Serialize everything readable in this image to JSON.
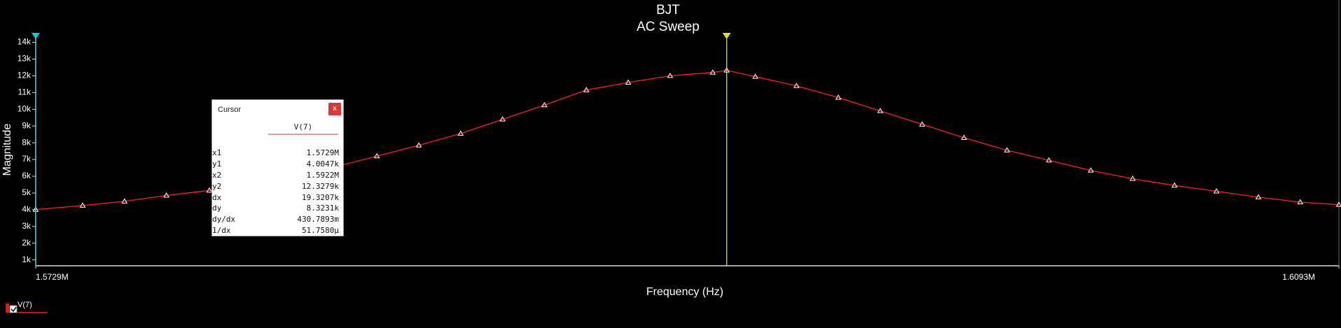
{
  "chart_data": {
    "type": "line",
    "title": "BJT",
    "subtitle": "AC Sweep",
    "x_label": "Frequency (Hz)",
    "y_label": "Magnitude",
    "x": [
      1572900,
      1574210,
      1575380,
      1576550,
      1577750,
      1578920,
      1580090,
      1581260,
      1582430,
      1583600,
      1584770,
      1585940,
      1587110,
      1588280,
      1589450,
      1590620,
      1591810,
      1592200,
      1593000,
      1594150,
      1595320,
      1596490,
      1597660,
      1598830,
      1600030,
      1601200,
      1602370,
      1603540,
      1604710,
      1605880,
      1607050,
      1608220,
      1609300
    ],
    "series": [
      {
        "name": "V(7)",
        "color": "#ff2020",
        "values": [
          4004.7,
          4250,
          4500,
          4850,
          5150,
          5550,
          6000,
          6550,
          7200,
          7850,
          8550,
          9400,
          10250,
          11150,
          11600,
          12000,
          12200,
          12327.9,
          11950,
          11400,
          10700,
          9900,
          9100,
          8300,
          7550,
          6950,
          6350,
          5850,
          5450,
          5100,
          4750,
          4450,
          4300
        ]
      }
    ],
    "xlim": [
      1572900,
      1609300
    ],
    "xticks": [
      {
        "value": 1572900,
        "label": "1.5729M"
      },
      {
        "value": 1609300,
        "label": "1.6093M"
      }
    ],
    "ylim": [
      650,
      14400
    ],
    "yticks": [
      {
        "value": 1000,
        "label": "1k"
      },
      {
        "value": 2000,
        "label": "2k"
      },
      {
        "value": 3000,
        "label": "3k"
      },
      {
        "value": 4000,
        "label": "4k"
      },
      {
        "value": 5000,
        "label": "5k"
      },
      {
        "value": 6000,
        "label": "6k"
      },
      {
        "value": 7000,
        "label": "7k"
      },
      {
        "value": 8000,
        "label": "8k"
      },
      {
        "value": 9000,
        "label": "9k"
      },
      {
        "value": 10000,
        "label": "10k"
      },
      {
        "value": 11000,
        "label": "11k"
      },
      {
        "value": 12000,
        "label": "12k"
      },
      {
        "value": 13000,
        "label": "13k"
      },
      {
        "value": 14000,
        "label": "14k"
      }
    ],
    "cursors": [
      {
        "value": 1572900,
        "color": "#1ec8d8"
      },
      {
        "value": 1592200,
        "color": "#e0e020"
      }
    ],
    "grid": false
  },
  "cursor_panel": {
    "title": "Cursor",
    "close": "x",
    "column": "V(7)",
    "rows": [
      [
        "x1",
        "1.5729M"
      ],
      [
        "y1",
        "4.0047k"
      ],
      [
        "x2",
        "1.5922M"
      ],
      [
        "y2",
        "12.3279k"
      ],
      [
        "dx",
        "19.3207k"
      ],
      [
        "dy",
        "8.3231k"
      ],
      [
        "dy/dx",
        "430.7893m"
      ],
      [
        "1/dx",
        "51.7580µ"
      ]
    ]
  }
}
